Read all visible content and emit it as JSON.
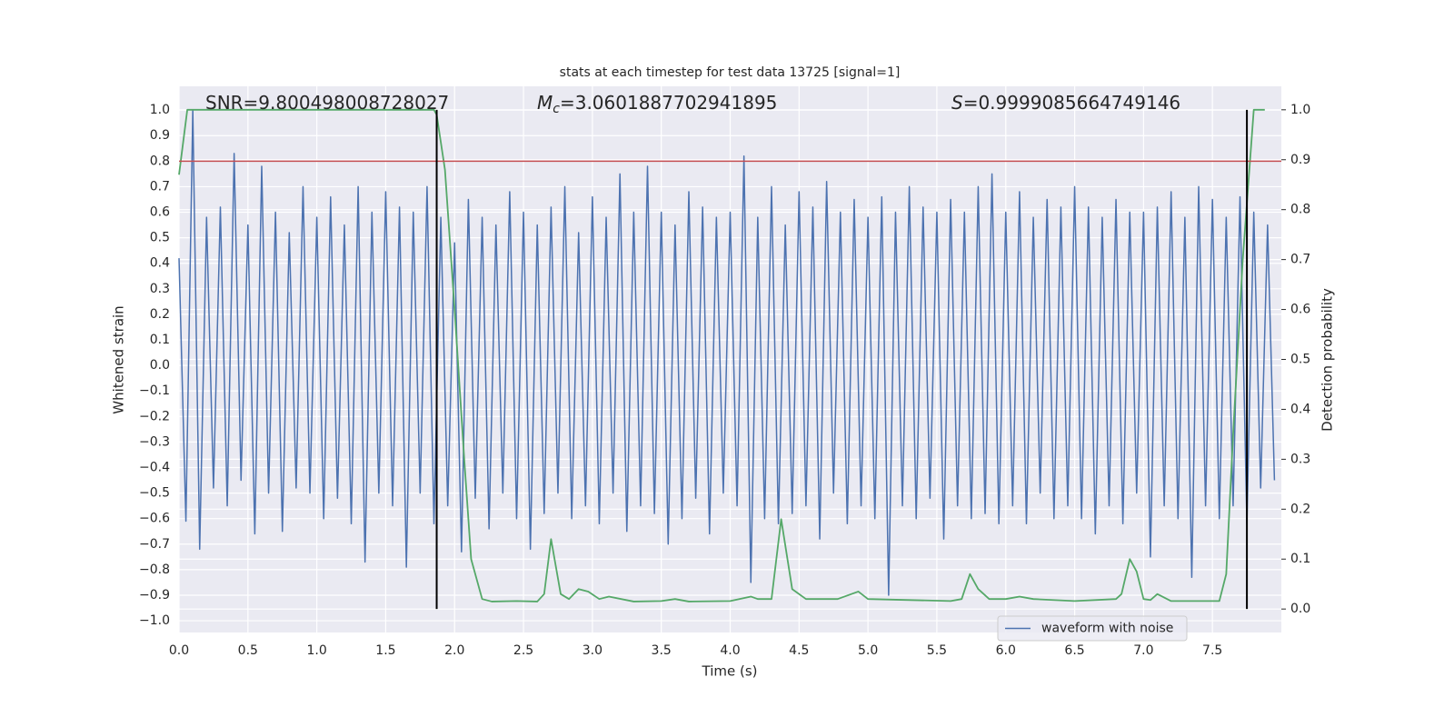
{
  "chart_data": {
    "type": "line",
    "title": "stats at each timestep for test data 13725 [signal=1]",
    "xlabel": "Time (s)",
    "ylabel": "Whitened strain",
    "y2label": "Detection probability",
    "annotations": [
      {
        "text": "SNR=9.800498008728027"
      },
      {
        "symbol": "M",
        "subscript": "c",
        "text": "=3.0601887702941895"
      },
      {
        "symbol": "S",
        "text": "=0.9999085664749146"
      }
    ],
    "xlim": [
      0,
      8.0
    ],
    "ylim": [
      -1.046,
      1.093
    ],
    "y2lim": [
      -0.047,
      1.047
    ],
    "xticks": [
      {
        "value": 0,
        "label": "0.0"
      },
      0.5,
      {
        "value": 1,
        "label": "1.0"
      },
      1.5,
      {
        "value": 2,
        "label": "2.0"
      },
      2.5,
      {
        "value": 3,
        "label": "3.0"
      },
      3.5,
      {
        "value": 4,
        "label": "4.0"
      },
      4.5,
      {
        "value": 5,
        "label": "5.0"
      },
      5.5,
      {
        "value": 6,
        "label": "6.0"
      },
      6.5,
      {
        "value": 7,
        "label": "7.0"
      },
      7.5
    ],
    "yticks": [
      {
        "value": -1,
        "label": "−1.0"
      },
      {
        "value": -0.9,
        "label": "−0.9"
      },
      {
        "value": -0.8,
        "label": "−0.8"
      },
      {
        "value": -0.7,
        "label": "−0.7"
      },
      {
        "value": -0.6,
        "label": "−0.6"
      },
      {
        "value": -0.5,
        "label": "−0.5"
      },
      {
        "value": -0.4,
        "label": "−0.4"
      },
      {
        "value": -0.3,
        "label": "−0.3"
      },
      {
        "value": -0.2,
        "label": "−0.2"
      },
      {
        "value": -0.1,
        "label": "−0.1"
      },
      {
        "value": 0,
        "label": "0.0"
      },
      0.1,
      0.2,
      0.3,
      0.4,
      0.5,
      0.6,
      0.7,
      0.8,
      0.9,
      {
        "value": 1,
        "label": "1.0"
      }
    ],
    "y2ticks": [
      {
        "value": 0,
        "label": "0.0"
      },
      0.1,
      0.2,
      0.3,
      0.4,
      0.5,
      0.6,
      0.7,
      0.8,
      0.9,
      {
        "value": 1,
        "label": "1.0"
      }
    ],
    "grid": true,
    "legend": "lower right",
    "hline": 0.8,
    "hline_color": "#c44e52",
    "vlines": [
      1.87,
      7.75
    ],
    "vline_color": "#000000",
    "series": [
      {
        "name": "waveform with noise",
        "color": "#4c72b0",
        "x": [
          0,
          0.05,
          0.1,
          0.15,
          0.2,
          0.25,
          0.3,
          0.35,
          0.4,
          0.45,
          0.5,
          0.55,
          0.6,
          0.65,
          0.7,
          0.75,
          0.8,
          0.85,
          0.9,
          0.95,
          1,
          1.05,
          1.1,
          1.15,
          1.2,
          1.25,
          1.3,
          1.35,
          1.4,
          1.45,
          1.5,
          1.55,
          1.6,
          1.65,
          1.7,
          1.75,
          1.8,
          1.85,
          1.9,
          1.95,
          2,
          2.05,
          2.1,
          2.15,
          2.2,
          2.25,
          2.3,
          2.35,
          2.4,
          2.45,
          2.5,
          2.55,
          2.6,
          2.65,
          2.7,
          2.75,
          2.8,
          2.85,
          2.9,
          2.95,
          3,
          3.05,
          3.1,
          3.15,
          3.2,
          3.25,
          3.3,
          3.35,
          3.4,
          3.45,
          3.5,
          3.55,
          3.6,
          3.65,
          3.7,
          3.75,
          3.8,
          3.85,
          3.9,
          3.95,
          4,
          4.05,
          4.1,
          4.15,
          4.2,
          4.25,
          4.3,
          4.35,
          4.4,
          4.45,
          4.5,
          4.55,
          4.6,
          4.65,
          4.7,
          4.75,
          4.8,
          4.85,
          4.9,
          4.95,
          5,
          5.05,
          5.1,
          5.15,
          5.2,
          5.25,
          5.3,
          5.35,
          5.4,
          5.45,
          5.5,
          5.55,
          5.6,
          5.65,
          5.7,
          5.75,
          5.8,
          5.85,
          5.9,
          5.95,
          6,
          6.05,
          6.1,
          6.15,
          6.2,
          6.25,
          6.3,
          6.35,
          6.4,
          6.45,
          6.5,
          6.55,
          6.6,
          6.65,
          6.7,
          6.75,
          6.8,
          6.85,
          6.9,
          6.95,
          7,
          7.05,
          7.1,
          7.15,
          7.2,
          7.25,
          7.3,
          7.35,
          7.4,
          7.45,
          7.5,
          7.55,
          7.6,
          7.65,
          7.7,
          7.75,
          7.8,
          7.85,
          7.9,
          7.95
        ],
        "values": [
          0.42,
          -0.61,
          1.0,
          -0.72,
          0.58,
          -0.48,
          0.62,
          -0.55,
          0.83,
          -0.45,
          0.55,
          -0.66,
          0.78,
          -0.5,
          0.6,
          -0.65,
          0.52,
          -0.48,
          0.7,
          -0.5,
          0.58,
          -0.6,
          0.66,
          -0.52,
          0.55,
          -0.62,
          0.7,
          -0.77,
          0.6,
          -0.5,
          0.68,
          -0.55,
          0.62,
          -0.79,
          0.6,
          -0.5,
          0.7,
          -0.62,
          0.58,
          -0.55,
          0.48,
          -0.73,
          0.65,
          -0.52,
          0.58,
          -0.64,
          0.55,
          -0.5,
          0.68,
          -0.6,
          0.6,
          -0.72,
          0.55,
          -0.58,
          0.62,
          -0.5,
          0.7,
          -0.6,
          0.52,
          -0.55,
          0.66,
          -0.62,
          0.58,
          -0.5,
          0.75,
          -0.65,
          0.6,
          -0.55,
          0.78,
          -0.58,
          0.6,
          -0.7,
          0.55,
          -0.6,
          0.68,
          -0.52,
          0.62,
          -0.66,
          0.58,
          -0.5,
          0.6,
          -0.55,
          0.82,
          -0.85,
          0.58,
          -0.6,
          0.7,
          -0.62,
          0.55,
          -0.58,
          0.68,
          -0.55,
          0.62,
          -0.68,
          0.72,
          -0.5,
          0.6,
          -0.62,
          0.65,
          -0.55,
          0.58,
          -0.6,
          0.66,
          -0.9,
          0.6,
          -0.55,
          0.7,
          -0.6,
          0.62,
          -0.52,
          0.6,
          -0.68,
          0.65,
          -0.55,
          0.6,
          -0.6,
          0.7,
          -0.58,
          0.75,
          -0.62,
          0.6,
          -0.55,
          0.68,
          -0.62,
          0.58,
          -0.5,
          0.65,
          -0.6,
          0.62,
          -0.55,
          0.7,
          -0.6,
          0.62,
          -0.66,
          0.58,
          -0.55,
          0.65,
          -0.62,
          0.6,
          -0.5,
          0.6,
          -0.75,
          0.62,
          -0.55,
          0.68,
          -0.6,
          0.58,
          -0.83,
          0.7,
          -0.55,
          0.65,
          -0.6,
          0.58,
          -0.55,
          0.66,
          -0.62,
          0.6,
          -0.48,
          0.55,
          -0.45
        ]
      },
      {
        "color": "#55a868",
        "axis": "y2",
        "x": [
          0,
          0.06,
          1.85,
          1.87,
          1.93,
          2.0,
          2.07,
          2.12,
          2.2,
          2.27,
          2.45,
          2.6,
          2.65,
          2.7,
          2.77,
          2.83,
          2.9,
          2.97,
          3.05,
          3.12,
          3.3,
          3.5,
          3.6,
          3.7,
          4.0,
          4.15,
          4.2,
          4.3,
          4.37,
          4.45,
          4.55,
          4.7,
          4.78,
          4.93,
          5.0,
          5.6,
          5.68,
          5.74,
          5.8,
          5.88,
          6.0,
          6.1,
          6.2,
          6.5,
          6.8,
          6.84,
          6.9,
          6.95,
          7.0,
          7.05,
          7.1,
          7.2,
          7.55,
          7.6,
          7.65,
          7.72,
          7.8,
          7.88
        ],
        "values": [
          0.87,
          1.0,
          1.0,
          0.99,
          0.88,
          0.6,
          0.3,
          0.1,
          0.02,
          0.015,
          0.016,
          0.015,
          0.03,
          0.14,
          0.03,
          0.02,
          0.04,
          0.035,
          0.02,
          0.025,
          0.015,
          0.016,
          0.02,
          0.015,
          0.016,
          0.025,
          0.02,
          0.02,
          0.18,
          0.04,
          0.02,
          0.02,
          0.02,
          0.035,
          0.02,
          0.016,
          0.02,
          0.07,
          0.04,
          0.02,
          0.02,
          0.025,
          0.02,
          0.016,
          0.02,
          0.03,
          0.1,
          0.075,
          0.02,
          0.018,
          0.03,
          0.016,
          0.016,
          0.07,
          0.35,
          0.7,
          1.0,
          1.0
        ]
      }
    ]
  }
}
